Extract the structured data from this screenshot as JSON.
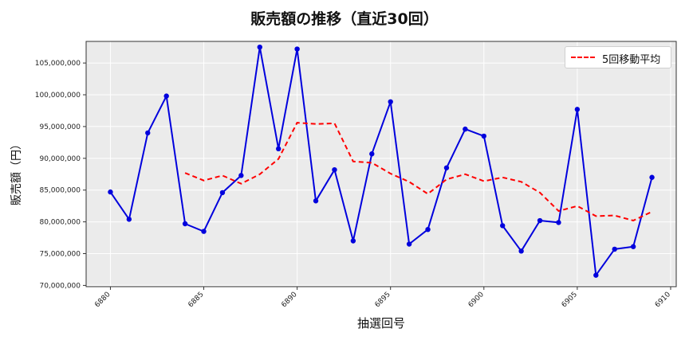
{
  "chart_data": {
    "type": "line",
    "title": "販売額の推移（直近30回）",
    "xlabel": "抽選回号",
    "ylabel": "販売額（円）",
    "x": [
      6880,
      6881,
      6882,
      6883,
      6884,
      6885,
      6886,
      6887,
      6888,
      6889,
      6890,
      6891,
      6892,
      6893,
      6894,
      6895,
      6896,
      6897,
      6898,
      6899,
      6900,
      6901,
      6902,
      6903,
      6904,
      6905,
      6906,
      6907,
      6908,
      6909
    ],
    "xlim": [
      6878.7,
      6910.3
    ],
    "ylim": [
      69800000,
      108400000
    ],
    "xticks": [
      6880,
      6885,
      6890,
      6895,
      6900,
      6905,
      6910
    ],
    "xtick_labels": [
      "6880",
      "6885",
      "6890",
      "6895",
      "6900",
      "6905",
      "6910"
    ],
    "yticks": [
      70000000,
      75000000,
      80000000,
      85000000,
      90000000,
      95000000,
      100000000,
      105000000
    ],
    "ytick_labels": [
      "70,000,000",
      "75,000,000",
      "80,000,000",
      "85,000,000",
      "90,000,000",
      "95,000,000",
      "100,000,000",
      "105,000,000"
    ],
    "grid": true,
    "legend_position": "top-right",
    "series": [
      {
        "name": "",
        "color": "#0000dd",
        "style": "solid-with-markers",
        "values": [
          84700000,
          80400000,
          94000000,
          99800000,
          79700000,
          78500000,
          84600000,
          87300000,
          107500000,
          91500000,
          107200000,
          83300000,
          88200000,
          77000000,
          90700000,
          98900000,
          76500000,
          78800000,
          88500000,
          94600000,
          93500000,
          79400000,
          75400000,
          80200000,
          79900000,
          97700000,
          71600000,
          75700000,
          76100000,
          87000000
        ]
      },
      {
        "name": "5回移動平均",
        "color": "#ff0000",
        "style": "dashed",
        "values": [
          null,
          null,
          null,
          null,
          87700000,
          86500000,
          87300000,
          86000000,
          87500000,
          89900000,
          95600000,
          95400000,
          95500000,
          89500000,
          89300000,
          87600000,
          86300000,
          84400000,
          86700000,
          87500000,
          86400000,
          87000000,
          86300000,
          84600000,
          81700000,
          82500000,
          80900000,
          81000000,
          80200000,
          81600000
        ]
      }
    ]
  }
}
